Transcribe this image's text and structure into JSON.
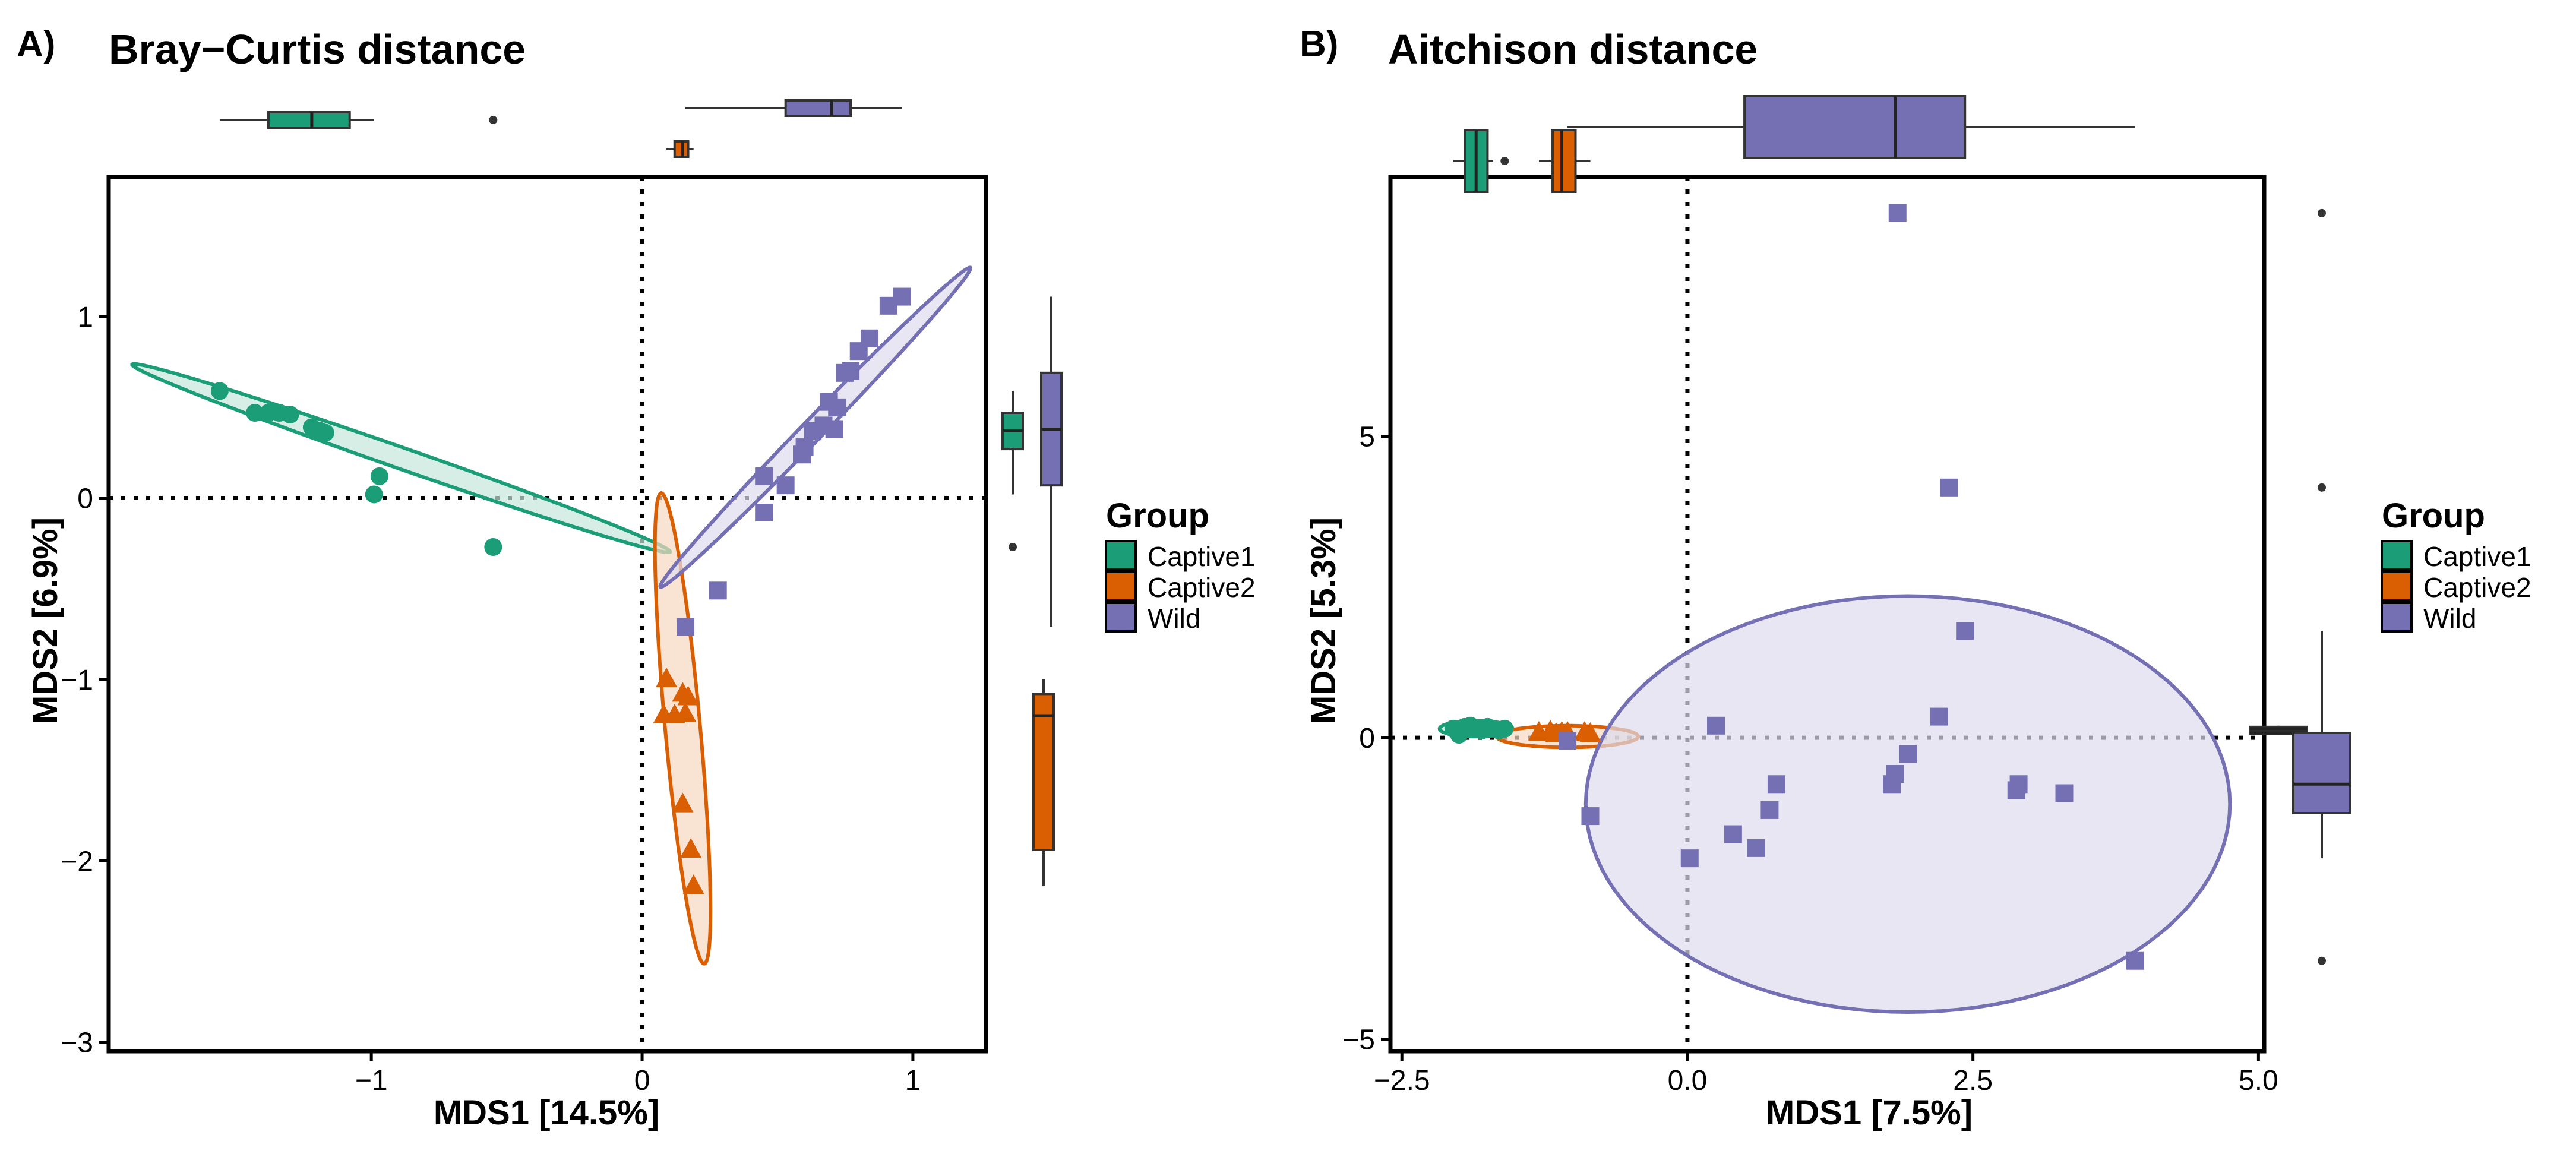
{
  "colors": {
    "captive1": "#1b9e77",
    "captive2": "#d95f02",
    "wild": "#7570b3"
  },
  "panels": [
    {
      "label": "A)",
      "title": "Bray−Curtis distance",
      "xlabel": "MDS1 [14.5%]",
      "ylabel": "MDS2 [6.9%]"
    },
    {
      "label": "B)",
      "title": "Aitchison distance",
      "xlabel": "MDS1 [7.5%]",
      "ylabel": "MDS2 [5.3%]"
    }
  ],
  "legend": {
    "title": "Group",
    "entries": [
      {
        "key": "captive1",
        "label": "Captive1"
      },
      {
        "key": "captive2",
        "label": "Captive2"
      },
      {
        "key": "wild",
        "label": "Wild"
      }
    ]
  },
  "chart_data": [
    {
      "type": "scatter",
      "title": "Bray−Curtis distance",
      "xlabel": "MDS1 [14.5%]",
      "ylabel": "MDS2 [6.9%]",
      "xlim": [
        -1.97,
        1.27
      ],
      "ylim": [
        -3.05,
        1.77
      ],
      "xticks": [
        -1,
        0,
        1
      ],
      "xtick_labels": [
        "−1",
        "0",
        "1"
      ],
      "yticks": [
        -3,
        -2,
        -1,
        0,
        1
      ],
      "ytick_labels": [
        "−3",
        "−2",
        "−1",
        "0",
        "1"
      ],
      "reference_lines": {
        "x": 0,
        "y": 0
      },
      "legend_position": "right",
      "series": [
        {
          "name": "Captive1",
          "key": "captive1",
          "marker": "circle",
          "points": [
            [
              -1.56,
              0.59
            ],
            [
              -1.43,
              0.47
            ],
            [
              -1.38,
              0.47
            ],
            [
              -1.34,
              0.47
            ],
            [
              -1.3,
              0.46
            ],
            [
              -1.22,
              0.39
            ],
            [
              -1.19,
              0.37
            ],
            [
              -1.17,
              0.36
            ],
            [
              -0.97,
              0.12
            ],
            [
              -0.99,
              0.02
            ],
            [
              -0.55,
              -0.27
            ]
          ],
          "ellipse": {
            "cx": -0.89,
            "cy": 0.22,
            "rx": 1.12,
            "ry": 0.055,
            "angle_deg": -27.5
          }
        },
        {
          "name": "Captive2",
          "key": "captive2",
          "marker": "triangle",
          "points": [
            [
              0.09,
              -1.0
            ],
            [
              0.15,
              -1.08
            ],
            [
              0.17,
              -1.1
            ],
            [
              0.12,
              -1.2
            ],
            [
              0.16,
              -1.19
            ],
            [
              0.08,
              -1.2
            ],
            [
              0.15,
              -1.69
            ],
            [
              0.18,
              -1.94
            ],
            [
              0.19,
              -2.14
            ]
          ],
          "ellipse": {
            "cx": 0.15,
            "cy": -1.27,
            "rx": 1.3,
            "ry": 0.065,
            "angle_deg": -86.5
          }
        },
        {
          "name": "Wild",
          "key": "wild",
          "marker": "square",
          "points": [
            [
              0.16,
              -0.71
            ],
            [
              0.28,
              -0.51
            ],
            [
              0.45,
              0.12
            ],
            [
              0.45,
              -0.08
            ],
            [
              0.53,
              0.07
            ],
            [
              0.59,
              0.24
            ],
            [
              0.6,
              0.28
            ],
            [
              0.63,
              0.37
            ],
            [
              0.67,
              0.4
            ],
            [
              0.69,
              0.53
            ],
            [
              0.71,
              0.38
            ],
            [
              0.72,
              0.5
            ],
            [
              0.75,
              0.69
            ],
            [
              0.77,
              0.7
            ],
            [
              0.8,
              0.81
            ],
            [
              0.84,
              0.88
            ],
            [
              0.91,
              1.06
            ],
            [
              0.96,
              1.11
            ]
          ],
          "ellipse": {
            "cx": 0.64,
            "cy": 0.39,
            "rx": 1.05,
            "ry": 0.045,
            "angle_deg": 57
          }
        }
      ],
      "marginal_boxplots": {
        "x": [
          {
            "key": "captive1",
            "whisker_min": -1.56,
            "q1": -1.38,
            "median": -1.22,
            "q3": -1.08,
            "whisker_max": -0.99,
            "outliers": [
              -0.55
            ]
          },
          {
            "key": "captive2",
            "whisker_min": 0.09,
            "q1": 0.12,
            "median": 0.15,
            "q3": 0.17,
            "whisker_max": 0.19,
            "outliers": []
          },
          {
            "key": "wild",
            "whisker_min": 0.16,
            "q1": 0.53,
            "median": 0.7,
            "q3": 0.77,
            "whisker_max": 0.96,
            "outliers": []
          }
        ],
        "y": [
          {
            "key": "captive1",
            "whisker_min": 0.02,
            "q1": 0.27,
            "median": 0.37,
            "q3": 0.47,
            "whisker_max": 0.59,
            "outliers": [
              -0.27
            ]
          },
          {
            "key": "captive2",
            "whisker_min": -2.14,
            "q1": -1.94,
            "median": -1.2,
            "q3": -1.08,
            "whisker_max": -1.0,
            "outliers": []
          },
          {
            "key": "wild",
            "whisker_min": -0.71,
            "q1": 0.07,
            "median": 0.38,
            "q3": 0.69,
            "whisker_max": 1.11,
            "outliers": []
          }
        ]
      }
    },
    {
      "type": "scatter",
      "title": "Aitchison distance",
      "xlabel": "MDS1 [7.5%]",
      "ylabel": "MDS2 [5.3%]",
      "xlim": [
        -2.6,
        5.05
      ],
      "ylim": [
        -5.2,
        9.3
      ],
      "xticks": [
        -2.5,
        0,
        2.5,
        5
      ],
      "xtick_labels": [
        "−2.5",
        "0.0",
        "2.5",
        "5.0"
      ],
      "yticks": [
        -5,
        0,
        5
      ],
      "ytick_labels": [
        "−5",
        "0",
        "5"
      ],
      "reference_lines": {
        "x": 0,
        "y": 0
      },
      "legend_position": "right",
      "series": [
        {
          "name": "Captive1",
          "key": "captive1",
          "marker": "circle",
          "points": [
            [
              -2.05,
              0.15
            ],
            [
              -2.0,
              0.1
            ],
            [
              -1.95,
              0.18
            ],
            [
              -1.9,
              0.2
            ],
            [
              -1.85,
              0.15
            ],
            [
              -1.8,
              0.12
            ],
            [
              -1.75,
              0.18
            ],
            [
              -1.7,
              0.15
            ],
            [
              -1.65,
              0.12
            ],
            [
              -1.6,
              0.15
            ],
            [
              -2.0,
              0.05
            ]
          ],
          "ellipse": {
            "cx": -1.85,
            "cy": 0.15,
            "rx": 0.32,
            "ry": 0.13,
            "angle_deg": 0
          }
        },
        {
          "name": "Captive2",
          "key": "captive2",
          "marker": "triangle",
          "points": [
            [
              -1.3,
              0.08
            ],
            [
              -1.2,
              0.1
            ],
            [
              -1.15,
              0.06
            ],
            [
              -1.1,
              0.08
            ],
            [
              -1.05,
              0.08
            ],
            [
              -0.9,
              0.08
            ],
            [
              -0.85,
              0.06
            ]
          ],
          "ellipse": {
            "cx": -1.05,
            "cy": 0.02,
            "rx": 0.62,
            "ry": 0.18,
            "angle_deg": 0
          }
        },
        {
          "name": "Wild",
          "key": "wild",
          "marker": "square",
          "points": [
            [
              1.84,
              8.7
            ],
            [
              2.29,
              4.15
            ],
            [
              2.43,
              1.77
            ],
            [
              2.2,
              0.35
            ],
            [
              0.25,
              0.2
            ],
            [
              1.93,
              -0.27
            ],
            [
              1.82,
              -0.6
            ],
            [
              1.79,
              -0.77
            ],
            [
              2.9,
              -0.77
            ],
            [
              2.88,
              -0.87
            ],
            [
              3.3,
              -0.92
            ],
            [
              0.78,
              -0.77
            ],
            [
              0.72,
              -1.2
            ],
            [
              0.4,
              -1.6
            ],
            [
              0.6,
              -1.83
            ],
            [
              0.02,
              -2.0
            ],
            [
              -0.85,
              -1.3
            ],
            [
              -1.05,
              -0.05
            ],
            [
              3.92,
              -3.7
            ]
          ],
          "ellipse": {
            "cx": 1.93,
            "cy": -1.1,
            "rx": 2.82,
            "ry": 3.45,
            "angle_deg": 0
          }
        }
      ],
      "marginal_boxplots": {
        "x": [
          {
            "key": "captive1",
            "whisker_min": -2.05,
            "q1": -1.95,
            "median": -1.85,
            "q3": -1.75,
            "whisker_max": -1.7,
            "outliers": [
              -1.6
            ]
          },
          {
            "key": "captive2",
            "whisker_min": -1.3,
            "q1": -1.18,
            "median": -1.1,
            "q3": -0.98,
            "whisker_max": -0.85,
            "outliers": []
          },
          {
            "key": "wild",
            "whisker_min": -1.05,
            "q1": 0.5,
            "median": 1.82,
            "q3": 2.43,
            "whisker_max": 3.92,
            "outliers": []
          }
        ],
        "y": [
          {
            "key": "captive1",
            "whisker_min": 0.05,
            "q1": 0.12,
            "median": 0.15,
            "q3": 0.18,
            "whisker_max": 0.2,
            "outliers": []
          },
          {
            "key": "captive2",
            "whisker_min": 0.06,
            "q1": 0.07,
            "median": 0.08,
            "q3": 0.09,
            "whisker_max": 0.1,
            "outliers": []
          },
          {
            "key": "wild",
            "whisker_min": -2.0,
            "q1": -1.25,
            "median": -0.77,
            "q3": 0.08,
            "whisker_max": 1.77,
            "outliers": [
              8.7,
              4.15,
              -3.7
            ]
          }
        ]
      }
    }
  ]
}
